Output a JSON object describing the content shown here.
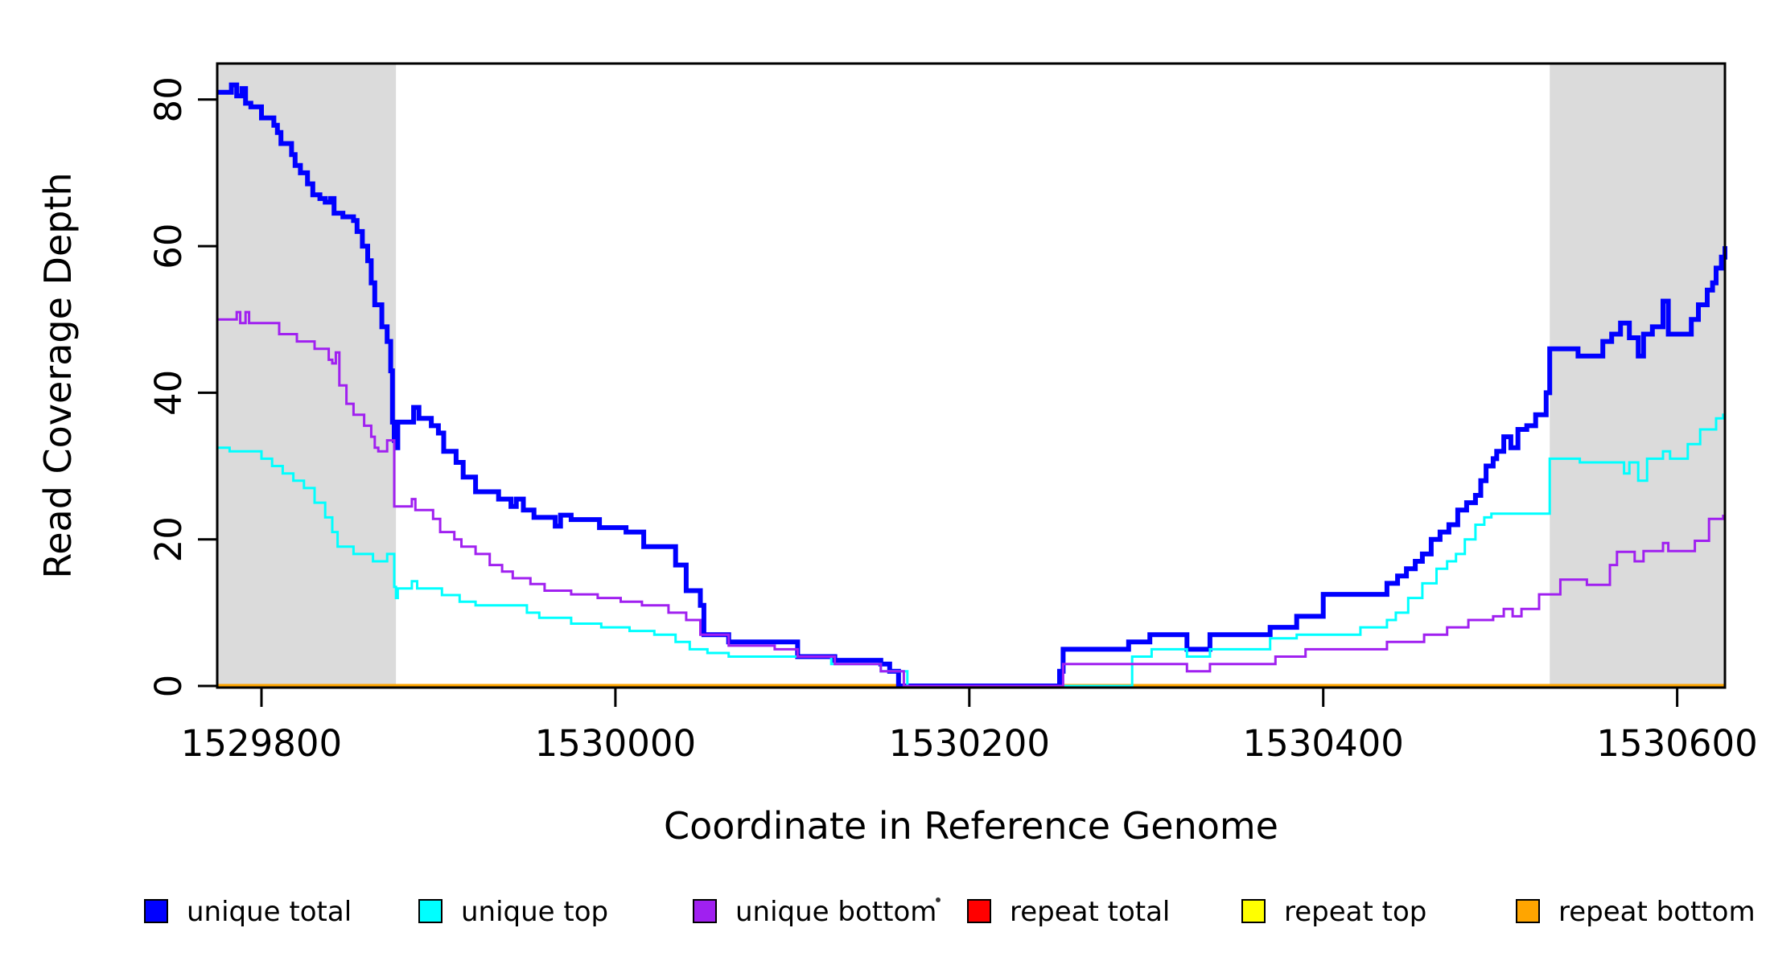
{
  "chart_data": {
    "type": "line",
    "step": true,
    "title": "",
    "xlabel": "Coordinate in Reference Genome",
    "ylabel": "Read Coverage Depth",
    "xlim": [
      1529775,
      1530627
    ],
    "ylim": [
      0,
      85
    ],
    "x_ticks": [
      1529800,
      1530000,
      1530200,
      1530400,
      1530600
    ],
    "y_ticks": [
      0,
      20,
      40,
      60,
      80
    ],
    "grid": false,
    "legend_position": "bottom",
    "shade_color": "#dbdbdb",
    "shaded_regions": [
      {
        "name": "left-repeat-region",
        "from": 1529775,
        "to": 1529876
      },
      {
        "name": "right-repeat-region",
        "from": 1530528,
        "to": 1530627
      }
    ],
    "series": [
      {
        "name": "unique total",
        "color": "#0000ff",
        "width": 6,
        "points": [
          [
            1529775,
            81
          ],
          [
            1529783,
            82
          ],
          [
            1529786,
            80.5
          ],
          [
            1529789,
            81.5
          ],
          [
            1529791,
            79.5
          ],
          [
            1529794,
            79
          ],
          [
            1529800,
            77.5
          ],
          [
            1529807,
            76.5
          ],
          [
            1529809,
            75.5
          ],
          [
            1529811,
            74
          ],
          [
            1529817,
            72.5
          ],
          [
            1529819,
            71
          ],
          [
            1529822,
            70
          ],
          [
            1529826,
            68.5
          ],
          [
            1529829,
            67
          ],
          [
            1529833,
            66.5
          ],
          [
            1529836,
            66
          ],
          [
            1529839,
            66.5
          ],
          [
            1529841,
            64.5
          ],
          [
            1529846,
            64
          ],
          [
            1529852,
            63.5
          ],
          [
            1529854,
            62
          ],
          [
            1529857,
            60
          ],
          [
            1529860,
            58
          ],
          [
            1529862,
            55
          ],
          [
            1529864,
            52
          ],
          [
            1529868,
            49
          ],
          [
            1529871,
            47
          ],
          [
            1529873,
            43
          ],
          [
            1529874,
            36
          ],
          [
            1529875,
            33.5
          ],
          [
            1529876,
            32.5
          ],
          [
            1529877,
            36
          ],
          [
            1529886,
            38
          ],
          [
            1529889,
            36.5
          ],
          [
            1529896,
            35.5
          ],
          [
            1529900,
            34.5
          ],
          [
            1529903,
            32
          ],
          [
            1529910,
            30.5
          ],
          [
            1529914,
            28.5
          ],
          [
            1529921,
            26.5
          ],
          [
            1529934,
            25.5
          ],
          [
            1529941,
            24.5
          ],
          [
            1529944,
            25.5
          ],
          [
            1529948,
            24
          ],
          [
            1529954,
            23
          ],
          [
            1529966,
            21.8
          ],
          [
            1529969,
            23.3
          ],
          [
            1529975,
            22.7
          ],
          [
            1529991,
            21.6
          ],
          [
            1530006,
            21
          ],
          [
            1530016,
            19
          ],
          [
            1530034,
            16.5
          ],
          [
            1530040,
            13
          ],
          [
            1530048,
            11
          ],
          [
            1530050,
            7
          ],
          [
            1530064,
            6
          ],
          [
            1530103,
            4
          ],
          [
            1530124,
            3.5
          ],
          [
            1530150,
            3
          ],
          [
            1530155,
            2
          ],
          [
            1530160,
            0
          ],
          [
            1530251,
            2
          ],
          [
            1530253,
            5
          ],
          [
            1530290,
            6
          ],
          [
            1530302,
            7
          ],
          [
            1530323,
            5
          ],
          [
            1530336,
            7
          ],
          [
            1530370,
            8
          ],
          [
            1530385,
            9.5
          ],
          [
            1530400,
            12.5
          ],
          [
            1530436,
            14
          ],
          [
            1530442,
            15
          ],
          [
            1530447,
            16
          ],
          [
            1530452,
            17
          ],
          [
            1530456,
            18
          ],
          [
            1530461,
            20
          ],
          [
            1530466,
            21
          ],
          [
            1530471,
            22
          ],
          [
            1530476,
            24
          ],
          [
            1530481,
            25
          ],
          [
            1530486,
            26
          ],
          [
            1530489,
            28
          ],
          [
            1530492,
            30
          ],
          [
            1530496,
            31
          ],
          [
            1530498,
            32
          ],
          [
            1530502,
            34
          ],
          [
            1530506,
            32.5
          ],
          [
            1530510,
            35
          ],
          [
            1530515,
            35.5
          ],
          [
            1530520,
            37
          ],
          [
            1530526,
            40
          ],
          [
            1530528,
            46
          ],
          [
            1530544,
            45
          ],
          [
            1530558,
            47
          ],
          [
            1530563,
            48
          ],
          [
            1530568,
            49.5
          ],
          [
            1530573,
            47.5
          ],
          [
            1530578,
            45
          ],
          [
            1530581,
            48
          ],
          [
            1530586,
            49
          ],
          [
            1530592,
            52.5
          ],
          [
            1530595,
            48
          ],
          [
            1530608,
            50
          ],
          [
            1530612,
            52
          ],
          [
            1530617,
            54
          ],
          [
            1530620,
            55
          ],
          [
            1530622,
            57
          ],
          [
            1530625,
            58.5
          ],
          [
            1530627,
            60
          ]
        ]
      },
      {
        "name": "unique top",
        "color": "#00ffff",
        "width": 3,
        "points": [
          [
            1529775,
            32.5
          ],
          [
            1529782,
            32
          ],
          [
            1529800,
            31
          ],
          [
            1529806,
            30
          ],
          [
            1529812,
            29
          ],
          [
            1529818,
            28
          ],
          [
            1529824,
            27
          ],
          [
            1529830,
            25
          ],
          [
            1529836,
            23
          ],
          [
            1529840,
            21
          ],
          [
            1529843,
            19
          ],
          [
            1529852,
            18
          ],
          [
            1529863,
            17
          ],
          [
            1529871,
            18
          ],
          [
            1529875,
            13.5
          ],
          [
            1529876,
            12
          ],
          [
            1529877,
            13.3
          ],
          [
            1529885,
            14.3
          ],
          [
            1529888,
            13.3
          ],
          [
            1529902,
            12.4
          ],
          [
            1529912,
            11.5
          ],
          [
            1529921,
            11
          ],
          [
            1529950,
            10
          ],
          [
            1529957,
            9.3
          ],
          [
            1529975,
            8.5
          ],
          [
            1529992,
            8
          ],
          [
            1530008,
            7.5
          ],
          [
            1530022,
            7
          ],
          [
            1530034,
            6
          ],
          [
            1530042,
            5
          ],
          [
            1530052,
            4.5
          ],
          [
            1530064,
            4
          ],
          [
            1530122,
            3
          ],
          [
            1530150,
            2
          ],
          [
            1530165,
            0
          ],
          [
            1530292,
            4
          ],
          [
            1530303,
            5
          ],
          [
            1530323,
            4
          ],
          [
            1530336,
            5
          ],
          [
            1530370,
            6.5
          ],
          [
            1530385,
            7
          ],
          [
            1530421,
            8
          ],
          [
            1530436,
            9
          ],
          [
            1530441,
            10
          ],
          [
            1530448,
            12
          ],
          [
            1530456,
            14
          ],
          [
            1530464,
            16
          ],
          [
            1530470,
            17
          ],
          [
            1530475,
            18
          ],
          [
            1530480,
            20
          ],
          [
            1530486,
            22
          ],
          [
            1530491,
            23
          ],
          [
            1530495,
            23.5
          ],
          [
            1530528,
            31
          ],
          [
            1530545,
            30.5
          ],
          [
            1530570,
            29
          ],
          [
            1530573,
            30.5
          ],
          [
            1530578,
            28
          ],
          [
            1530583,
            31
          ],
          [
            1530592,
            32
          ],
          [
            1530596,
            31
          ],
          [
            1530606,
            33
          ],
          [
            1530613,
            35
          ],
          [
            1530622,
            36.5
          ],
          [
            1530626,
            37
          ]
        ]
      },
      {
        "name": "unique bottom",
        "color": "#a020f0",
        "width": 3,
        "points": [
          [
            1529775,
            50
          ],
          [
            1529786,
            51
          ],
          [
            1529788,
            49.5
          ],
          [
            1529791,
            51
          ],
          [
            1529793,
            49.5
          ],
          [
            1529810,
            48
          ],
          [
            1529820,
            47
          ],
          [
            1529830,
            46
          ],
          [
            1529838,
            44.5
          ],
          [
            1529840,
            44
          ],
          [
            1529842,
            45.5
          ],
          [
            1529844,
            41
          ],
          [
            1529848,
            38.5
          ],
          [
            1529852,
            37
          ],
          [
            1529858,
            35.5
          ],
          [
            1529862,
            34
          ],
          [
            1529864,
            32.5
          ],
          [
            1529866,
            32
          ],
          [
            1529871,
            33.5
          ],
          [
            1529875,
            24.5
          ],
          [
            1529885,
            25.5
          ],
          [
            1529887,
            24
          ],
          [
            1529897,
            22.8
          ],
          [
            1529901,
            21
          ],
          [
            1529909,
            20
          ],
          [
            1529913,
            19
          ],
          [
            1529921,
            18
          ],
          [
            1529929,
            16.5
          ],
          [
            1529936,
            15.6
          ],
          [
            1529942,
            14.7
          ],
          [
            1529952,
            13.9
          ],
          [
            1529960,
            13
          ],
          [
            1529975,
            12.5
          ],
          [
            1529990,
            12
          ],
          [
            1530003,
            11.5
          ],
          [
            1530015,
            11
          ],
          [
            1530030,
            10
          ],
          [
            1530040,
            9
          ],
          [
            1530048,
            7
          ],
          [
            1530064,
            5.5
          ],
          [
            1530090,
            5
          ],
          [
            1530103,
            4
          ],
          [
            1530124,
            3
          ],
          [
            1530150,
            2
          ],
          [
            1530163,
            0
          ],
          [
            1530253,
            3
          ],
          [
            1530323,
            2
          ],
          [
            1530336,
            3
          ],
          [
            1530373,
            4
          ],
          [
            1530390,
            5
          ],
          [
            1530436,
            6
          ],
          [
            1530457,
            7
          ],
          [
            1530470,
            8
          ],
          [
            1530482,
            9
          ],
          [
            1530496,
            9.5
          ],
          [
            1530502,
            10.5
          ],
          [
            1530507,
            9.5
          ],
          [
            1530512,
            10.5
          ],
          [
            1530522,
            12.5
          ],
          [
            1530534,
            14.5
          ],
          [
            1530549,
            13.8
          ],
          [
            1530562,
            16.5
          ],
          [
            1530566,
            18.3
          ],
          [
            1530576,
            17
          ],
          [
            1530581,
            18.4
          ],
          [
            1530592,
            19.5
          ],
          [
            1530595,
            18.4
          ],
          [
            1530610,
            19.8
          ],
          [
            1530618,
            22.8
          ],
          [
            1530626,
            23.2
          ]
        ]
      },
      {
        "name": "repeat total",
        "color": "#ff0000",
        "width": 3,
        "points": [
          [
            1529775,
            0
          ]
        ]
      },
      {
        "name": "repeat top",
        "color": "#ffff00",
        "width": 3,
        "points": [
          [
            1529775,
            0
          ]
        ]
      },
      {
        "name": "repeat bottom",
        "color": "#ffa500",
        "width": 5,
        "points": [
          [
            1529775,
            0
          ]
        ]
      }
    ],
    "legend": {
      "items": [
        {
          "label": "unique total",
          "color": "#0000ff"
        },
        {
          "label": "unique top",
          "color": "#00ffff"
        },
        {
          "label": "unique bottom",
          "color": "#a020f0"
        },
        {
          "label": "repeat total",
          "color": "#ff0000"
        },
        {
          "label": "repeat top",
          "color": "#ffff00"
        },
        {
          "label": "repeat bottom",
          "color": "#ffa500"
        }
      ]
    }
  }
}
